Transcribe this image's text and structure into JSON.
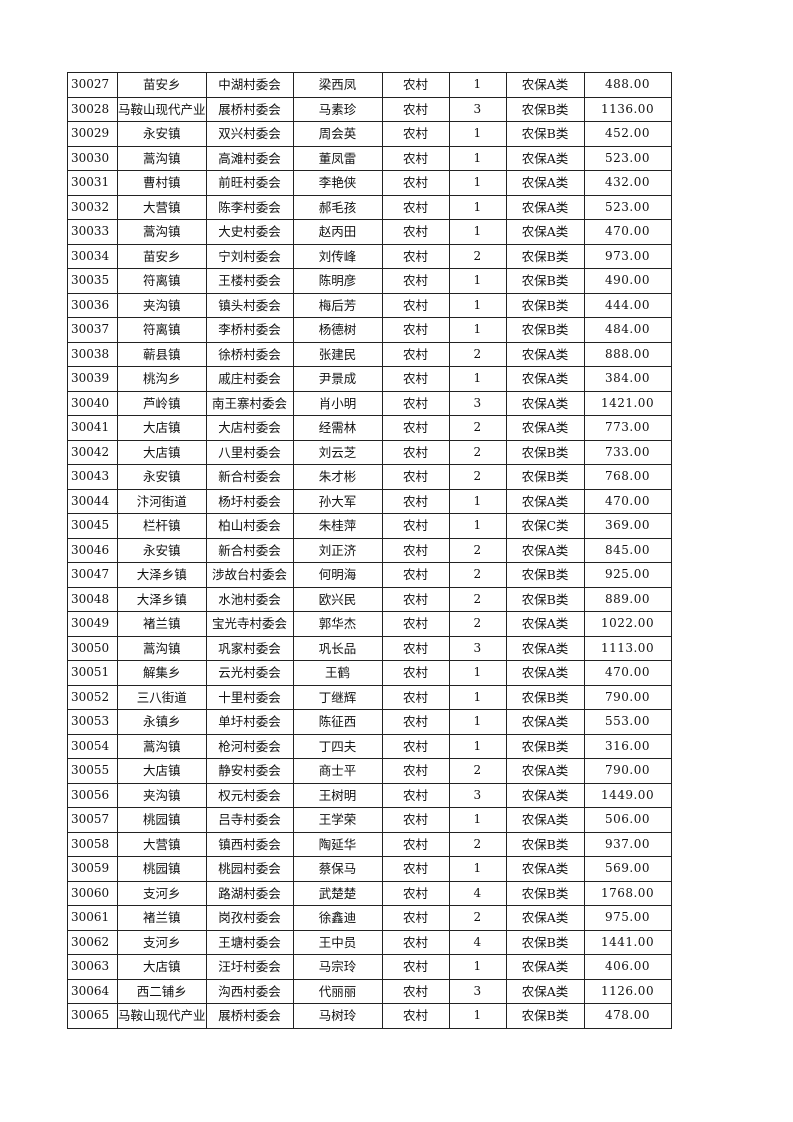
{
  "table": {
    "rows": [
      [
        "30027",
        "苗安乡",
        "中湖村委会",
        "梁西凤",
        "农村",
        "1",
        "农保A类",
        "488.00"
      ],
      [
        "30028",
        "马鞍山现代产业",
        "展桥村委会",
        "马素珍",
        "农村",
        "3",
        "农保B类",
        "1136.00"
      ],
      [
        "30029",
        "永安镇",
        "双兴村委会",
        "周会英",
        "农村",
        "1",
        "农保B类",
        "452.00"
      ],
      [
        "30030",
        "蒿沟镇",
        "高滩村委会",
        "董凤雷",
        "农村",
        "1",
        "农保A类",
        "523.00"
      ],
      [
        "30031",
        "曹村镇",
        "前旺村委会",
        "李艳侠",
        "农村",
        "1",
        "农保A类",
        "432.00"
      ],
      [
        "30032",
        "大营镇",
        "陈李村委会",
        "郝毛孩",
        "农村",
        "1",
        "农保A类",
        "523.00"
      ],
      [
        "30033",
        "蒿沟镇",
        "大史村委会",
        "赵丙田",
        "农村",
        "1",
        "农保A类",
        "470.00"
      ],
      [
        "30034",
        "苗安乡",
        "宁刘村委会",
        "刘传峰",
        "农村",
        "2",
        "农保B类",
        "973.00"
      ],
      [
        "30035",
        "符离镇",
        "王楼村委会",
        "陈明彦",
        "农村",
        "1",
        "农保B类",
        "490.00"
      ],
      [
        "30036",
        "夹沟镇",
        "镇头村委会",
        "梅后芳",
        "农村",
        "1",
        "农保B类",
        "444.00"
      ],
      [
        "30037",
        "符离镇",
        "李桥村委会",
        "杨德树",
        "农村",
        "1",
        "农保B类",
        "484.00"
      ],
      [
        "30038",
        "蕲县镇",
        "徐桥村委会",
        "张建民",
        "农村",
        "2",
        "农保A类",
        "888.00"
      ],
      [
        "30039",
        "桃沟乡",
        "戚庄村委会",
        "尹景成",
        "农村",
        "1",
        "农保A类",
        "384.00"
      ],
      [
        "30040",
        "芦岭镇",
        "南王寨村委会",
        "肖小明",
        "农村",
        "3",
        "农保A类",
        "1421.00"
      ],
      [
        "30041",
        "大店镇",
        "大店村委会",
        "经需林",
        "农村",
        "2",
        "农保A类",
        "773.00"
      ],
      [
        "30042",
        "大店镇",
        "八里村委会",
        "刘云芝",
        "农村",
        "2",
        "农保B类",
        "733.00"
      ],
      [
        "30043",
        "永安镇",
        "新合村委会",
        "朱才彬",
        "农村",
        "2",
        "农保B类",
        "768.00"
      ],
      [
        "30044",
        "汴河街道",
        "杨圩村委会",
        "孙大军",
        "农村",
        "1",
        "农保A类",
        "470.00"
      ],
      [
        "30045",
        "栏杆镇",
        "柏山村委会",
        "朱桂萍",
        "农村",
        "1",
        "农保C类",
        "369.00"
      ],
      [
        "30046",
        "永安镇",
        "新合村委会",
        "刘正济",
        "农村",
        "2",
        "农保A类",
        "845.00"
      ],
      [
        "30047",
        "大泽乡镇",
        "涉故台村委会",
        "何明海",
        "农村",
        "2",
        "农保B类",
        "925.00"
      ],
      [
        "30048",
        "大泽乡镇",
        "水池村委会",
        "欧兴民",
        "农村",
        "2",
        "农保B类",
        "889.00"
      ],
      [
        "30049",
        "褚兰镇",
        "宝光寺村委会",
        "郭华杰",
        "农村",
        "2",
        "农保A类",
        "1022.00"
      ],
      [
        "30050",
        "蒿沟镇",
        "巩家村委会",
        "巩长品",
        "农村",
        "3",
        "农保A类",
        "1113.00"
      ],
      [
        "30051",
        "解集乡",
        "云光村委会",
        "王鹤",
        "农村",
        "1",
        "农保A类",
        "470.00"
      ],
      [
        "30052",
        "三八街道",
        "十里村委会",
        "丁继辉",
        "农村",
        "1",
        "农保B类",
        "790.00"
      ],
      [
        "30053",
        "永镇乡",
        "单圩村委会",
        "陈征西",
        "农村",
        "1",
        "农保A类",
        "553.00"
      ],
      [
        "30054",
        "蒿沟镇",
        "枪河村委会",
        "丁四夫",
        "农村",
        "1",
        "农保B类",
        "316.00"
      ],
      [
        "30055",
        "大店镇",
        "静安村委会",
        "商士平",
        "农村",
        "2",
        "农保A类",
        "790.00"
      ],
      [
        "30056",
        "夹沟镇",
        "权元村委会",
        "王树明",
        "农村",
        "3",
        "农保A类",
        "1449.00"
      ],
      [
        "30057",
        "桃园镇",
        "吕寺村委会",
        "王学荣",
        "农村",
        "1",
        "农保A类",
        "506.00"
      ],
      [
        "30058",
        "大营镇",
        "镇西村委会",
        "陶延华",
        "农村",
        "2",
        "农保B类",
        "937.00"
      ],
      [
        "30059",
        "桃园镇",
        "桃园村委会",
        "蔡保马",
        "农村",
        "1",
        "农保A类",
        "569.00"
      ],
      [
        "30060",
        "支河乡",
        "路湖村委会",
        "武楚楚",
        "农村",
        "4",
        "农保B类",
        "1768.00"
      ],
      [
        "30061",
        "褚兰镇",
        "岗孜村委会",
        "徐鑫迪",
        "农村",
        "2",
        "农保A类",
        "975.00"
      ],
      [
        "30062",
        "支河乡",
        "王塘村委会",
        "王中员",
        "农村",
        "4",
        "农保B类",
        "1441.00"
      ],
      [
        "30063",
        "大店镇",
        "汪圩村委会",
        "马宗玲",
        "农村",
        "1",
        "农保A类",
        "406.00"
      ],
      [
        "30064",
        "西二铺乡",
        "沟西村委会",
        "代丽丽",
        "农村",
        "3",
        "农保A类",
        "1126.00"
      ],
      [
        "30065",
        "马鞍山现代产业",
        "展桥村委会",
        "马树玲",
        "农村",
        "1",
        "农保B类",
        "478.00"
      ]
    ]
  }
}
